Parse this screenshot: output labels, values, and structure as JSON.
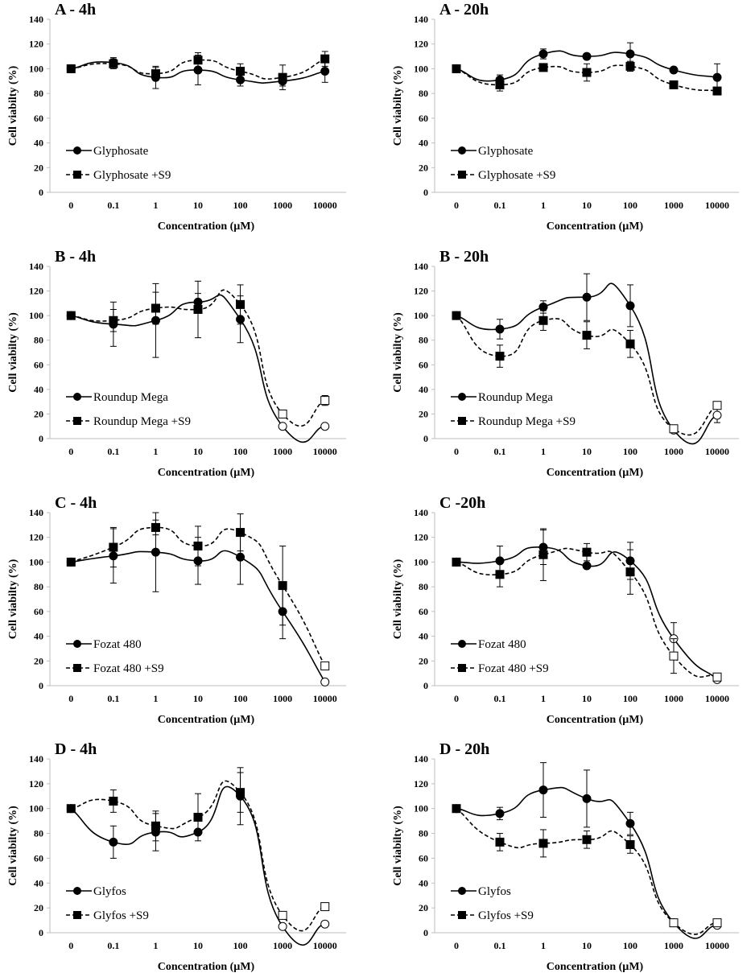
{
  "figure": {
    "description_free": true
  },
  "chart_data": [
    {
      "id": "A-4h",
      "type": "line",
      "title": "A - 4h",
      "xlabel": "Concentration (µM)",
      "ylabel": "Cell viabilty (%)",
      "ylim": [
        0,
        140
      ],
      "yticks": [
        0,
        20,
        40,
        60,
        80,
        100,
        120,
        140
      ],
      "categories": [
        "0",
        "0.1",
        "1",
        "10",
        "100",
        "1000",
        "10000"
      ],
      "series": [
        {
          "name": "Glyphosate",
          "marker": "circle",
          "dash": false,
          "values": [
            100,
            105,
            93,
            99,
            91,
            90,
            98
          ],
          "err": [
            0,
            4,
            9,
            12,
            5,
            4,
            9
          ],
          "open": [
            false,
            false,
            false,
            false,
            false,
            false,
            false
          ]
        },
        {
          "name": "Glyphosate +S9",
          "marker": "square",
          "dash": true,
          "values": [
            100,
            104,
            96,
            107,
            98,
            93,
            108
          ],
          "err": [
            0,
            4,
            5,
            6,
            6,
            10,
            6
          ],
          "open": [
            false,
            false,
            false,
            false,
            false,
            false,
            false
          ]
        }
      ]
    },
    {
      "id": "A-20h",
      "type": "line",
      "title": "A - 20h",
      "xlabel": "Concentration (µM)",
      "ylabel": "Cell viabilty (%)",
      "ylim": [
        0,
        140
      ],
      "yticks": [
        0,
        20,
        40,
        60,
        80,
        100,
        120,
        140
      ],
      "categories": [
        "0",
        "0.1",
        "1",
        "10",
        "100",
        "1000",
        "10000"
      ],
      "series": [
        {
          "name": "Glyphosate",
          "marker": "circle",
          "dash": false,
          "values": [
            100,
            91,
            112,
            110,
            112,
            99,
            93
          ],
          "err": [
            0,
            4,
            4,
            0,
            9,
            0,
            11
          ],
          "open": [
            false,
            false,
            false,
            false,
            false,
            false,
            false
          ]
        },
        {
          "name": "Glyphosate +S9",
          "marker": "square",
          "dash": true,
          "values": [
            100,
            87,
            101,
            97,
            102,
            87,
            82
          ],
          "err": [
            0,
            5,
            3,
            7,
            4,
            3,
            0
          ],
          "open": [
            false,
            false,
            false,
            false,
            false,
            false,
            false
          ]
        }
      ]
    },
    {
      "id": "B-4h",
      "type": "line",
      "title": "B - 4h",
      "xlabel": "Concentration (µM)",
      "ylabel": "Cell viabilty (%)",
      "ylim": [
        0,
        140
      ],
      "yticks": [
        0,
        20,
        40,
        60,
        80,
        100,
        120,
        140
      ],
      "categories": [
        "0",
        "0.1",
        "1",
        "10",
        "100",
        "1000",
        "10000"
      ],
      "series": [
        {
          "name": "Roundup Mega",
          "marker": "circle",
          "dash": false,
          "values": [
            100,
            93,
            96,
            111,
            97,
            10,
            10
          ],
          "err": [
            0,
            18,
            30,
            7,
            19,
            0,
            0
          ],
          "open": [
            false,
            false,
            false,
            false,
            false,
            true,
            true
          ]
        },
        {
          "name": "Roundup Mega +S9",
          "marker": "square",
          "dash": true,
          "values": [
            100,
            96,
            106,
            105,
            109,
            20,
            31
          ],
          "err": [
            0,
            9,
            13,
            23,
            16,
            0,
            4
          ],
          "open": [
            false,
            false,
            false,
            false,
            false,
            true,
            true
          ]
        }
      ]
    },
    {
      "id": "B-20h",
      "type": "line",
      "title": "B - 20h",
      "xlabel": "Concentration (µM)",
      "ylabel": "Cell viabilty (%)",
      "ylim": [
        0,
        140
      ],
      "yticks": [
        0,
        20,
        40,
        60,
        80,
        100,
        120,
        140
      ],
      "categories": [
        "0",
        "0.1",
        "1",
        "10",
        "100",
        "1000",
        "10000"
      ],
      "series": [
        {
          "name": "Roundup Mega",
          "marker": "circle",
          "dash": false,
          "values": [
            100,
            89,
            107,
            115,
            108,
            7,
            19
          ],
          "err": [
            0,
            8,
            5,
            19,
            17,
            0,
            6
          ],
          "open": [
            false,
            false,
            false,
            false,
            false,
            true,
            true
          ]
        },
        {
          "name": "Roundup Mega +S9",
          "marker": "square",
          "dash": true,
          "values": [
            100,
            67,
            96,
            84,
            77,
            8,
            27
          ],
          "err": [
            0,
            9,
            8,
            11,
            11,
            0,
            0
          ],
          "open": [
            false,
            false,
            false,
            false,
            false,
            true,
            true
          ]
        }
      ]
    },
    {
      "id": "C-4h",
      "type": "line",
      "title": "C - 4h",
      "xlabel": "Concentration (µM)",
      "ylabel": "Cell viabilty (%)",
      "ylim": [
        0,
        140
      ],
      "yticks": [
        0,
        20,
        40,
        60,
        80,
        100,
        120,
        140
      ],
      "categories": [
        "0",
        "0.1",
        "1",
        "10",
        "100",
        "1000",
        "10000"
      ],
      "series": [
        {
          "name": "Fozat 480",
          "marker": "circle",
          "dash": false,
          "values": [
            100,
            105,
            108,
            101,
            104,
            60,
            3
          ],
          "err": [
            0,
            22,
            32,
            19,
            22,
            22,
            0
          ],
          "open": [
            false,
            false,
            false,
            false,
            false,
            false,
            true
          ]
        },
        {
          "name": "Fozat 480 +S9",
          "marker": "square",
          "dash": true,
          "values": [
            100,
            112,
            128,
            113,
            124,
            81,
            16
          ],
          "err": [
            0,
            16,
            6,
            16,
            15,
            32,
            0
          ],
          "open": [
            false,
            false,
            false,
            false,
            false,
            false,
            true
          ]
        }
      ]
    },
    {
      "id": "C-20h",
      "type": "line",
      "title": "C -20h",
      "xlabel": "Concentration (µM)",
      "ylabel": "Cell viabilty (%)",
      "ylim": [
        0,
        140
      ],
      "yticks": [
        0,
        20,
        40,
        60,
        80,
        100,
        120,
        140
      ],
      "categories": [
        "0",
        "0.1",
        "1",
        "10",
        "100",
        "1000",
        "10000"
      ],
      "series": [
        {
          "name": "Fozat 480",
          "marker": "circle",
          "dash": false,
          "values": [
            100,
            101,
            112,
            97,
            101,
            38,
            5
          ],
          "err": [
            0,
            12,
            14,
            0,
            15,
            13,
            0
          ],
          "open": [
            false,
            false,
            false,
            false,
            false,
            true,
            true
          ]
        },
        {
          "name": "Fozat 480 +S9",
          "marker": "square",
          "dash": true,
          "values": [
            100,
            90,
            106,
            108,
            92,
            24,
            7
          ],
          "err": [
            0,
            10,
            21,
            7,
            18,
            14,
            0
          ],
          "open": [
            false,
            false,
            false,
            false,
            false,
            true,
            true
          ]
        }
      ]
    },
    {
      "id": "D-4h",
      "type": "line",
      "title": "D - 4h",
      "xlabel": "Concentration (µM)",
      "ylabel": "Cell viabilty (%)",
      "ylim": [
        0,
        140
      ],
      "yticks": [
        0,
        20,
        40,
        60,
        80,
        100,
        120,
        140
      ],
      "categories": [
        "0",
        "0.1",
        "1",
        "10",
        "100",
        "1000",
        "10000"
      ],
      "series": [
        {
          "name": "Glyfos",
          "marker": "circle",
          "dash": false,
          "values": [
            100,
            73,
            81,
            81,
            110,
            5,
            7
          ],
          "err": [
            0,
            13,
            15,
            0,
            23,
            0,
            0
          ],
          "open": [
            false,
            false,
            false,
            false,
            false,
            true,
            true
          ]
        },
        {
          "name": "Glyfos +S9",
          "marker": "square",
          "dash": true,
          "values": [
            100,
            106,
            86,
            93,
            113,
            14,
            21
          ],
          "err": [
            0,
            9,
            12,
            19,
            16,
            0,
            0
          ],
          "open": [
            false,
            false,
            false,
            false,
            false,
            true,
            true
          ]
        }
      ]
    },
    {
      "id": "D-20h",
      "type": "line",
      "title": "D - 20h",
      "xlabel": "Concentration (µM)",
      "ylabel": "Cell viabilty (%)",
      "ylim": [
        0,
        140
      ],
      "yticks": [
        0,
        20,
        40,
        60,
        80,
        100,
        120,
        140
      ],
      "categories": [
        "0",
        "0.1",
        "1",
        "10",
        "100",
        "1000",
        "10000"
      ],
      "series": [
        {
          "name": "Glyfos",
          "marker": "circle",
          "dash": false,
          "values": [
            100,
            96,
            115,
            108,
            88,
            8,
            6
          ],
          "err": [
            0,
            5,
            22,
            23,
            9,
            0,
            0
          ],
          "open": [
            false,
            false,
            false,
            false,
            false,
            true,
            true
          ]
        },
        {
          "name": "Glyfos +S9",
          "marker": "square",
          "dash": true,
          "values": [
            100,
            73,
            72,
            75,
            71,
            8,
            8
          ],
          "err": [
            0,
            7,
            11,
            7,
            7,
            0,
            0
          ],
          "open": [
            false,
            false,
            false,
            false,
            false,
            true,
            true
          ]
        }
      ]
    }
  ]
}
